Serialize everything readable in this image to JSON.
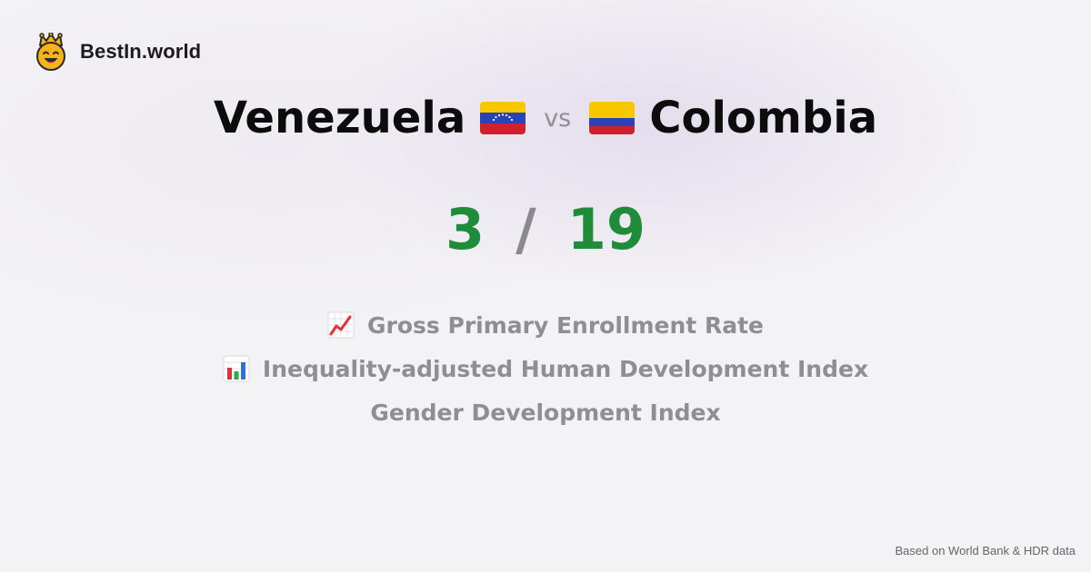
{
  "brand": {
    "name": "BestIn.world",
    "logo_icon": "crowned-smiley-icon"
  },
  "comparison": {
    "left_country": "Venezuela",
    "left_flag_icon": "flag-venezuela-icon",
    "vs_label": "vs",
    "right_country": "Colombia",
    "right_flag_icon": "flag-colombia-icon"
  },
  "score": {
    "left": "3",
    "separator": "/",
    "right": "19",
    "color": "#1f8c3a"
  },
  "metrics": [
    {
      "label": "Gross Primary Enrollment Rate",
      "icon": "chart-increasing-icon"
    },
    {
      "label": "Inequality-adjusted Human Development Index",
      "icon": "bar-chart-icon"
    },
    {
      "label": "Gender Development Index",
      "icon": ""
    }
  ],
  "footer": {
    "source_text": "Based on World Bank & HDR data"
  }
}
